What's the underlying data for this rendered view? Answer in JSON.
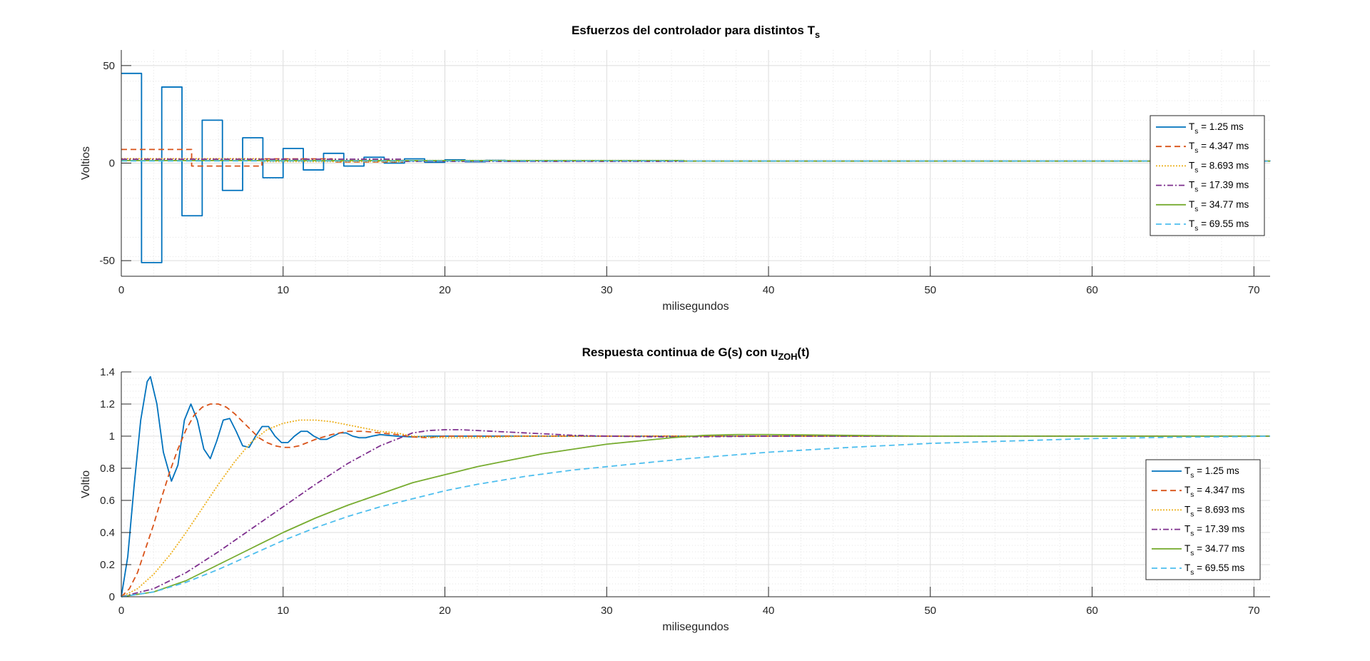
{
  "chart_data": [
    {
      "type": "line",
      "step": true,
      "title_main": "Esfuerzos del controlador para distintos T",
      "title_sub": "s",
      "xlabel": "milisegundos",
      "ylabel": "Voltios",
      "xlim": [
        0,
        71
      ],
      "ylim": [
        -58,
        58
      ],
      "xticks": [
        0,
        10,
        20,
        30,
        40,
        50,
        60,
        70
      ],
      "yticks": [
        -50,
        0,
        50
      ],
      "grid": true,
      "minor_grid": true,
      "legend": "right",
      "series": [
        {
          "name_main": "T",
          "name_sub": "s",
          "name_rest": " = 1.25 ms",
          "color": "#0072BD",
          "dash": "",
          "x": [
            0,
            1.25,
            2.5,
            3.75,
            5,
            6.25,
            7.5,
            8.75,
            10,
            11.25,
            12.5,
            13.75,
            15,
            16.25,
            17.5,
            18.75,
            20,
            21.25,
            22.5,
            23.75,
            25,
            26.25,
            27.5,
            71
          ],
          "y": [
            46,
            -51,
            39,
            -27,
            22,
            -14,
            13,
            -7.5,
            7.5,
            -3.5,
            5,
            -1.5,
            3,
            0,
            2.2,
            0.4,
            1.7,
            0.7,
            1.4,
            0.9,
            1.2,
            1,
            1.05,
            1
          ]
        },
        {
          "name_main": "T",
          "name_sub": "s",
          "name_rest": " = 4.347 ms",
          "color": "#D95319",
          "dash": "8,5",
          "x": [
            0,
            4.347,
            8.693,
            13.04,
            17.39,
            71
          ],
          "y": [
            7,
            -1.5,
            2.2,
            0.6,
            1.1,
            1
          ]
        },
        {
          "name_main": "T",
          "name_sub": "s",
          "name_rest": " = 8.693 ms",
          "color": "#EDB120",
          "dash": "2,2",
          "x": [
            0,
            8.693,
            17.39,
            71
          ],
          "y": [
            2.3,
            0.8,
            1.05,
            1
          ]
        },
        {
          "name_main": "T",
          "name_sub": "s",
          "name_rest": " = 17.39 ms",
          "color": "#7E2F8E",
          "dash": "8,3,2,3",
          "x": [
            0,
            17.39,
            34.77,
            71
          ],
          "y": [
            2,
            0.9,
            1,
            1
          ]
        },
        {
          "name_main": "T",
          "name_sub": "s",
          "name_rest": " = 34.77 ms",
          "color": "#77AC30",
          "dash": "",
          "x": [
            0,
            34.77,
            71
          ],
          "y": [
            1.3,
            1,
            1
          ]
        },
        {
          "name_main": "T",
          "name_sub": "s",
          "name_rest": " = 69.55 ms",
          "color": "#4DBEEE",
          "dash": "8,5",
          "x": [
            0,
            69.55,
            71
          ],
          "y": [
            1.1,
            1,
            1
          ]
        }
      ]
    },
    {
      "type": "line",
      "step": false,
      "title_main": "Respuesta continua de G(s) con u",
      "title_sub": "ZOH",
      "title_rest": "(t)",
      "xlabel": "milisegundos",
      "ylabel": "Voltio",
      "xlim": [
        0,
        71
      ],
      "ylim": [
        0,
        1.4
      ],
      "xticks": [
        0,
        10,
        20,
        30,
        40,
        50,
        60,
        70
      ],
      "yticks": [
        0,
        0.2,
        0.4,
        0.6,
        0.8,
        1,
        1.2,
        1.4
      ],
      "grid": true,
      "minor_grid": true,
      "legend": "right",
      "series": [
        {
          "name_main": "T",
          "name_sub": "s",
          "name_rest": " = 1.25 ms",
          "color": "#0072BD",
          "dash": "",
          "x": [
            0,
            0.4,
            0.8,
            1.2,
            1.6,
            1.8,
            2.2,
            2.6,
            3.1,
            3.5,
            3.9,
            4.3,
            4.7,
            5.1,
            5.5,
            5.9,
            6.3,
            6.7,
            7.1,
            7.5,
            7.9,
            8.3,
            8.7,
            9.1,
            9.5,
            9.9,
            10.3,
            10.7,
            11.1,
            11.5,
            11.9,
            12.3,
            12.7,
            13.1,
            13.5,
            13.9,
            14.3,
            14.7,
            15.1,
            15.5,
            16,
            17,
            18,
            19,
            20,
            22,
            25,
            30,
            71
          ],
          "y": [
            0,
            0.25,
            0.7,
            1.1,
            1.34,
            1.37,
            1.2,
            0.9,
            0.72,
            0.82,
            1.1,
            1.2,
            1.1,
            0.92,
            0.86,
            0.97,
            1.1,
            1.11,
            1.03,
            0.94,
            0.93,
            1.0,
            1.06,
            1.06,
            1.0,
            0.96,
            0.96,
            1.0,
            1.03,
            1.03,
            1.0,
            0.98,
            0.98,
            1.0,
            1.02,
            1.02,
            1.0,
            0.99,
            0.99,
            1.0,
            1.01,
            1.0,
            0.995,
            1.0,
            1.0,
            1.0,
            1.0,
            1.0,
            1.0
          ]
        },
        {
          "name_main": "T",
          "name_sub": "s",
          "name_rest": " = 4.347 ms",
          "color": "#D95319",
          "dash": "8,5",
          "x": [
            0,
            0.5,
            1,
            1.5,
            2,
            2.5,
            3,
            3.5,
            4,
            4.5,
            5,
            5.5,
            6,
            6.5,
            7,
            7.5,
            8,
            8.5,
            9,
            9.5,
            10,
            10.5,
            11,
            11.5,
            12,
            13,
            14,
            15,
            16,
            17,
            18,
            19,
            20,
            22,
            25,
            71
          ],
          "y": [
            0,
            0.05,
            0.15,
            0.3,
            0.45,
            0.62,
            0.78,
            0.92,
            1.04,
            1.13,
            1.18,
            1.2,
            1.2,
            1.18,
            1.14,
            1.09,
            1.04,
            0.99,
            0.96,
            0.94,
            0.93,
            0.93,
            0.94,
            0.96,
            0.98,
            1.01,
            1.03,
            1.03,
            1.02,
            1.01,
            0.995,
            0.99,
            1.0,
            1.0,
            1.0,
            1.0
          ]
        },
        {
          "name_main": "T",
          "name_sub": "s",
          "name_rest": " = 8.693 ms",
          "color": "#EDB120",
          "dash": "2,2",
          "x": [
            0,
            1,
            2,
            3,
            4,
            5,
            6,
            7,
            8,
            9,
            10,
            11,
            12,
            13,
            14,
            15,
            16,
            17,
            18,
            20,
            22,
            25,
            30,
            71
          ],
          "y": [
            0,
            0.05,
            0.14,
            0.26,
            0.4,
            0.55,
            0.7,
            0.84,
            0.96,
            1.04,
            1.08,
            1.1,
            1.1,
            1.09,
            1.07,
            1.05,
            1.03,
            1.02,
            1.0,
            0.99,
            0.99,
            1.0,
            1.0,
            1.0
          ]
        },
        {
          "name_main": "T",
          "name_sub": "s",
          "name_rest": " = 17.39 ms",
          "color": "#7E2F8E",
          "dash": "8,3,2,3",
          "x": [
            0,
            2,
            4,
            6,
            8,
            10,
            12,
            14,
            16,
            18,
            19,
            20,
            21,
            22,
            24,
            26,
            28,
            30,
            34,
            40,
            50,
            71
          ],
          "y": [
            0,
            0.05,
            0.15,
            0.28,
            0.42,
            0.56,
            0.7,
            0.83,
            0.94,
            1.02,
            1.035,
            1.04,
            1.04,
            1.035,
            1.025,
            1.015,
            1.005,
            1.0,
            0.995,
            1.0,
            1.0,
            1.0
          ]
        },
        {
          "name_main": "T",
          "name_sub": "s",
          "name_rest": " = 34.77 ms",
          "color": "#77AC30",
          "dash": "",
          "x": [
            0,
            2,
            4,
            6,
            8,
            10,
            12,
            14,
            16,
            18,
            20,
            22,
            24,
            26,
            28,
            30,
            32,
            34,
            36,
            38,
            40,
            45,
            50,
            60,
            71
          ],
          "y": [
            0,
            0.03,
            0.1,
            0.2,
            0.3,
            0.4,
            0.49,
            0.57,
            0.64,
            0.71,
            0.76,
            0.81,
            0.85,
            0.89,
            0.92,
            0.95,
            0.97,
            0.99,
            1.005,
            1.01,
            1.01,
            1.005,
            1.0,
            1.0,
            1.0
          ]
        },
        {
          "name_main": "T",
          "name_sub": "s",
          "name_rest": " = 69.55 ms",
          "color": "#4DBEEE",
          "dash": "8,5",
          "x": [
            0,
            2,
            4,
            6,
            8,
            10,
            12,
            14,
            16,
            18,
            20,
            22,
            25,
            28,
            30,
            35,
            40,
            45,
            50,
            55,
            60,
            65,
            70,
            71
          ],
          "y": [
            0,
            0.03,
            0.09,
            0.17,
            0.26,
            0.35,
            0.43,
            0.5,
            0.56,
            0.61,
            0.66,
            0.7,
            0.75,
            0.79,
            0.81,
            0.86,
            0.9,
            0.93,
            0.955,
            0.97,
            0.985,
            0.993,
            0.998,
            1.0
          ]
        }
      ]
    }
  ]
}
